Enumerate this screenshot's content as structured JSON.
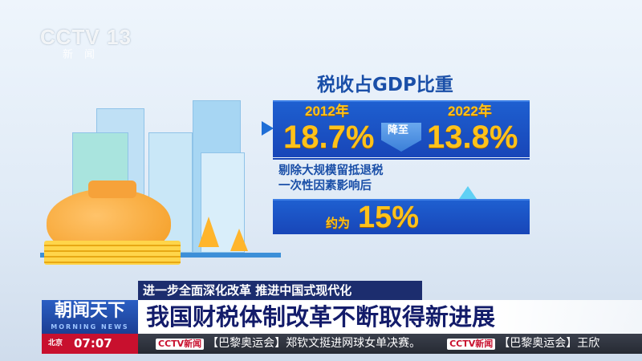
{
  "channel_logo": {
    "text": "CCTV 13",
    "sub": "新闻"
  },
  "infographic": {
    "title": "税收占GDP比重",
    "year_from": "2012年",
    "value_from": "18.7%",
    "change_label": "降至",
    "year_to": "2022年",
    "value_to": "13.8%",
    "note_line1": "剔除大规模留抵退税",
    "note_line2": "一次性因素影响后",
    "approx_label": "约为",
    "approx_value": "15%"
  },
  "lower_third": {
    "topic": "进一步全面深化改革 推进中国式现代化",
    "headline": "我国财税体制改革不断取得新进展",
    "show_name": "朝闻天下",
    "show_sub": "MORNING NEWS",
    "clock_prefix": "北京",
    "clock": "07:07",
    "ticker": [
      {
        "brand": "CCTV新闻",
        "text": "【巴黎奥运会】郑钦文挺进网球女单决赛。"
      },
      {
        "brand": "CCTV新闻",
        "text": "【巴黎奥运会】王欣"
      }
    ]
  },
  "colors": {
    "panel": "#1e5fd0",
    "accent": "#ffc21a",
    "headline": "#131c6a",
    "red": "#c8102e"
  }
}
